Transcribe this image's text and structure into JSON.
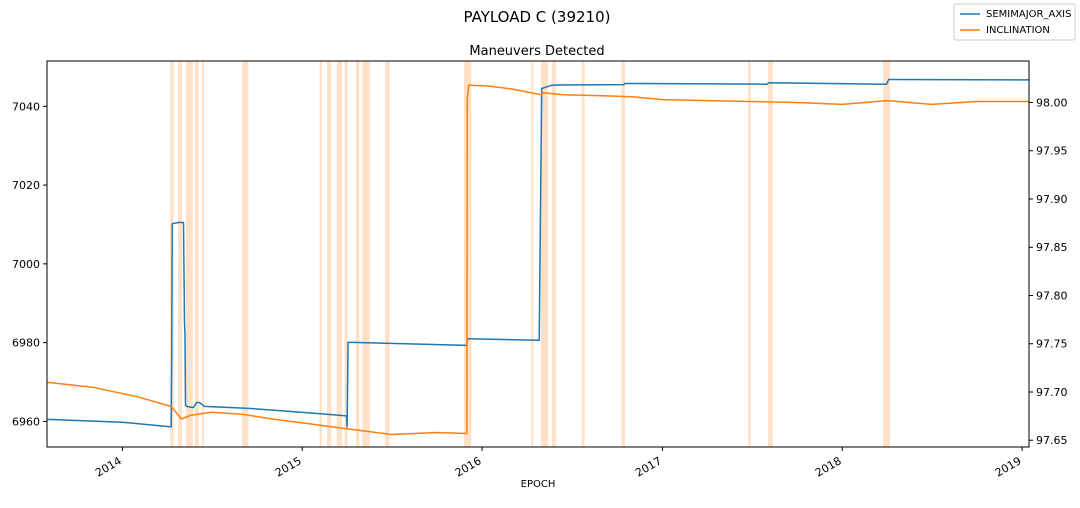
{
  "chart_data": {
    "type": "line",
    "suptitle": "PAYLOAD C (39210)",
    "title": "Maneuvers Detected",
    "xlabel": "EPOCH",
    "ylabel_left": "",
    "ylabel_right": "",
    "x_type": "date",
    "xlim": [
      "2013-08-01",
      "2019-01-15"
    ],
    "ylim_left": [
      6953.5,
      7051.5
    ],
    "ylim_right": [
      97.643,
      98.043
    ],
    "x_ticks": [
      "2014-01-01",
      "2015-01-01",
      "2016-01-01",
      "2017-01-01",
      "2018-01-01",
      "2019-01-01"
    ],
    "x_tick_labels": [
      "2014",
      "2015",
      "2016",
      "2017",
      "2018",
      "2019"
    ],
    "y_left_ticks": [
      6960,
      6980,
      7000,
      7020,
      7040
    ],
    "y_right_ticks": [
      97.65,
      97.7,
      97.75,
      97.8,
      97.85,
      97.9,
      97.95,
      98.0
    ],
    "y_right_tick_labels": [
      "97.65",
      "97.70",
      "97.75",
      "97.80",
      "97.85",
      "97.90",
      "97.95",
      "98.00"
    ],
    "legend": {
      "placement": "top-right",
      "entries": [
        "SEMIMAJOR_AXIS",
        "INCLINATION"
      ]
    },
    "grid": false,
    "colors": {
      "semimajor_axis": "#1f77b4",
      "inclination": "#ff7f0e",
      "maneuver_span": "#ffdcbd"
    },
    "maneuver_spans": [
      [
        "2014-04-08",
        "2014-04-15"
      ],
      [
        "2014-04-24",
        "2014-05-02"
      ],
      [
        "2014-05-10",
        "2014-05-24"
      ],
      [
        "2014-05-28",
        "2014-06-05"
      ],
      [
        "2014-06-12",
        "2014-06-16"
      ],
      [
        "2014-09-01",
        "2014-09-14"
      ],
      [
        "2015-02-05",
        "2015-02-10"
      ],
      [
        "2015-02-20",
        "2015-03-01"
      ],
      [
        "2015-03-12",
        "2015-03-23"
      ],
      [
        "2015-03-28",
        "2015-04-03"
      ],
      [
        "2015-04-20",
        "2015-04-27"
      ],
      [
        "2015-05-03",
        "2015-05-18"
      ],
      [
        "2015-06-18",
        "2015-06-27"
      ],
      [
        "2015-11-25",
        "2015-12-10"
      ],
      [
        "2016-04-10",
        "2016-04-14"
      ],
      [
        "2016-04-29",
        "2016-05-14"
      ],
      [
        "2016-05-22",
        "2016-05-30"
      ],
      [
        "2016-07-21",
        "2016-07-27"
      ],
      [
        "2016-10-10",
        "2016-10-17"
      ],
      [
        "2017-06-24",
        "2017-06-29"
      ],
      [
        "2017-08-03",
        "2017-08-13"
      ],
      [
        "2018-03-25",
        "2018-04-08"
      ]
    ],
    "series": [
      {
        "name": "SEMIMAJOR_AXIS",
        "axis": "left",
        "x": [
          "2013-08-01",
          "2014-01-01",
          "2014-04-10",
          "2014-04-11",
          "2014-04-12",
          "2014-04-13",
          "2014-04-25",
          "2014-05-05",
          "2014-05-07",
          "2014-05-08",
          "2014-05-09",
          "2014-05-12",
          "2014-05-25",
          "2014-06-01",
          "2014-06-06",
          "2014-06-15",
          "2014-06-16",
          "2014-09-15",
          "2015-02-01",
          "2015-04-01",
          "2015-04-02",
          "2015-04-04",
          "2015-05-01",
          "2015-12-01",
          "2015-12-02",
          "2015-12-05",
          "2016-04-25",
          "2016-04-26",
          "2016-05-01",
          "2016-05-20",
          "2016-06-01",
          "2016-10-15",
          "2016-10-16",
          "2017-08-01",
          "2017-08-05",
          "2018-04-01",
          "2018-04-05",
          "2018-04-10",
          "2019-01-15"
        ],
        "values": [
          6960.5,
          6959.8,
          6958.6,
          6976.5,
          7010.2,
          7010.2,
          7010.5,
          7010.5,
          6985.0,
          6982.0,
          6964.0,
          6963.8,
          6963.5,
          6964.8,
          6964.8,
          6964.0,
          6963.8,
          6963.3,
          6962.0,
          6961.4,
          6958.6,
          6980.1,
          6980.0,
          6979.3,
          6981.0,
          6981.0,
          6980.6,
          6980.6,
          7044.5,
          7045.3,
          7045.4,
          7045.5,
          7045.8,
          7045.6,
          7046.0,
          7045.6,
          7046.8,
          7046.8,
          7046.7
        ]
      },
      {
        "name": "INCLINATION",
        "axis": "right",
        "x": [
          "2013-08-01",
          "2013-11-01",
          "2014-02-01",
          "2014-04-10",
          "2014-05-01",
          "2014-05-20",
          "2014-07-01",
          "2014-09-01",
          "2014-11-01",
          "2015-01-15",
          "2015-04-01",
          "2015-07-01",
          "2015-10-01",
          "2015-12-01",
          "2015-12-02",
          "2015-12-05",
          "2016-01-15",
          "2016-03-01",
          "2016-05-01",
          "2016-05-02",
          "2016-06-15",
          "2016-09-01",
          "2016-11-01",
          "2017-01-01",
          "2017-04-01",
          "2017-07-01",
          "2017-10-01",
          "2018-01-01",
          "2018-04-01",
          "2018-07-01",
          "2018-10-01",
          "2019-01-15"
        ],
        "values": [
          97.71,
          97.705,
          97.695,
          97.685,
          97.672,
          97.676,
          97.679,
          97.677,
          97.672,
          97.667,
          97.662,
          97.656,
          97.658,
          97.657,
          98.005,
          98.018,
          98.017,
          98.014,
          98.008,
          98.01,
          98.008,
          98.007,
          98.006,
          98.003,
          98.002,
          98.001,
          98.0,
          97.998,
          98.002,
          97.998,
          98.001,
          98.001
        ]
      }
    ]
  }
}
